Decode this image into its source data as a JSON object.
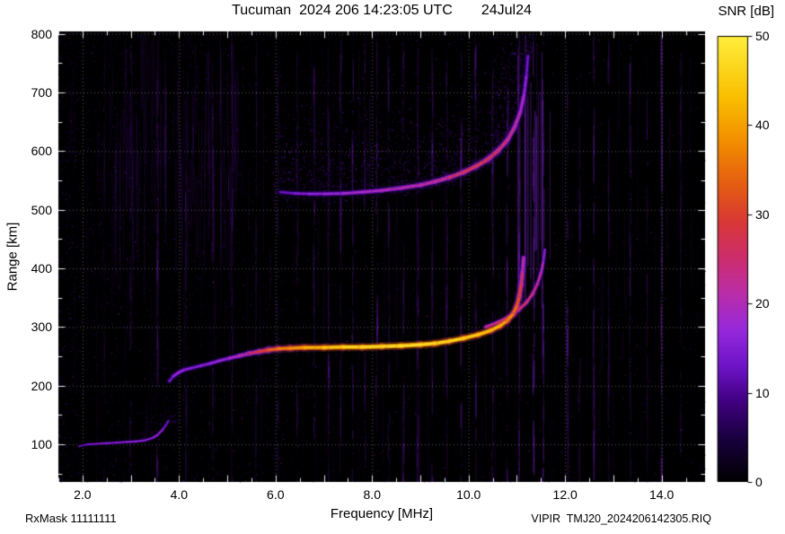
{
  "title": {
    "station_line": "Tucuman  2024 206 14:23:05 UTC",
    "date": "24Jul24"
  },
  "colorbar": {
    "label": "SNR [dB]",
    "tick_labels": [
      "0",
      "10",
      "20",
      "30",
      "40",
      "50"
    ],
    "min": 0,
    "max": 50
  },
  "axes": {
    "x_label": "Frequency [MHz]",
    "y_label": "Range [km]",
    "x_ticks": [
      2.0,
      4.0,
      6.0,
      8.0,
      10.0,
      12.0,
      14.0
    ],
    "x_tick_labels": [
      "2.0",
      "4.0",
      "6.0",
      "8.0",
      "10.0",
      "12.0",
      "14.0"
    ],
    "y_ticks": [
      100,
      200,
      300,
      400,
      500,
      600,
      700,
      800
    ],
    "y_tick_labels": [
      "100",
      "200",
      "300",
      "400",
      "500",
      "600",
      "700",
      "800"
    ],
    "x_range": [
      1.5,
      14.9
    ],
    "y_range": [
      36,
      804
    ]
  },
  "footer": {
    "rxmask": "RxMask 11111111",
    "file_info": "VIPIR  TMJ20_2024206142305.RIQ"
  },
  "chart_data": {
    "type": "heatmap",
    "title": "Tucuman 2024 206 14:23:05 UTC 24Jul24",
    "xlabel": "Frequency [MHz]",
    "ylabel": "Range [km]",
    "zlabel": "SNR [dB]",
    "xlim": [
      1.5,
      14.9
    ],
    "ylim": [
      36,
      804
    ],
    "zlim": [
      0,
      50
    ],
    "grid": true,
    "legend": "none",
    "colormap_stops": [
      [
        0.0,
        [
          0,
          0,
          0
        ]
      ],
      [
        0.1,
        [
          26,
          0,
          64
        ]
      ],
      [
        0.18,
        [
          64,
          0,
          128
        ]
      ],
      [
        0.26,
        [
          110,
          20,
          200
        ]
      ],
      [
        0.34,
        [
          150,
          40,
          220
        ]
      ],
      [
        0.42,
        [
          185,
          45,
          170
        ]
      ],
      [
        0.5,
        [
          205,
          45,
          110
        ]
      ],
      [
        0.58,
        [
          215,
          55,
          55
        ]
      ],
      [
        0.66,
        [
          228,
          90,
          20
        ]
      ],
      [
        0.76,
        [
          242,
          140,
          0
        ]
      ],
      [
        0.86,
        [
          250,
          190,
          0
        ]
      ],
      [
        1.0,
        [
          255,
          238,
          60
        ]
      ]
    ],
    "traces": [
      {
        "name": "E-layer-trace",
        "points_format": "[frequency_MHz, range_km, snr_dB]",
        "points": [
          [
            1.93,
            97,
            7
          ],
          [
            2.1,
            100,
            10
          ],
          [
            2.3,
            101,
            11
          ],
          [
            2.5,
            102,
            12
          ],
          [
            2.7,
            103,
            12
          ],
          [
            2.9,
            104,
            13
          ],
          [
            3.1,
            105,
            13
          ],
          [
            3.3,
            107,
            12
          ],
          [
            3.45,
            111,
            13
          ],
          [
            3.55,
            116,
            14
          ],
          [
            3.65,
            124,
            13
          ],
          [
            3.72,
            132,
            11
          ],
          [
            3.78,
            140,
            9
          ]
        ]
      },
      {
        "name": "F-trace-O-mode",
        "points_format": "[frequency_MHz, range_km, snr_dB]",
        "points": [
          [
            3.8,
            208,
            8
          ],
          [
            3.88,
            216,
            11
          ],
          [
            3.98,
            222,
            13
          ],
          [
            4.1,
            227,
            12
          ],
          [
            4.25,
            230,
            11
          ],
          [
            4.45,
            234,
            11
          ],
          [
            4.65,
            238,
            12
          ],
          [
            4.85,
            243,
            13
          ],
          [
            5.05,
            247,
            14
          ],
          [
            5.25,
            251,
            16
          ],
          [
            5.45,
            255,
            19
          ],
          [
            5.65,
            258,
            23
          ],
          [
            5.85,
            261,
            28
          ],
          [
            6.05,
            263,
            32
          ],
          [
            6.3,
            264,
            35
          ],
          [
            6.6,
            265,
            37
          ],
          [
            7.0,
            265,
            40
          ],
          [
            7.4,
            266,
            42
          ],
          [
            7.8,
            266,
            43
          ],
          [
            8.2,
            267,
            43
          ],
          [
            8.6,
            268,
            44
          ],
          [
            9.0,
            270,
            44
          ],
          [
            9.3,
            272,
            43
          ],
          [
            9.6,
            276,
            43
          ],
          [
            9.9,
            281,
            42
          ],
          [
            10.2,
            287,
            41
          ],
          [
            10.45,
            294,
            40
          ],
          [
            10.65,
            302,
            38
          ],
          [
            10.8,
            311,
            36
          ],
          [
            10.92,
            322,
            33
          ],
          [
            11.0,
            336,
            30
          ],
          [
            11.05,
            352,
            27
          ],
          [
            11.09,
            372,
            24
          ],
          [
            11.12,
            394,
            20
          ],
          [
            11.14,
            418,
            15
          ]
        ]
      },
      {
        "name": "F-trace-X-mode",
        "points_format": "[frequency_MHz, range_km, snr_dB]",
        "points": [
          [
            10.35,
            300,
            19
          ],
          [
            10.6,
            308,
            21
          ],
          [
            10.85,
            318,
            23
          ],
          [
            11.05,
            330,
            24
          ],
          [
            11.2,
            342,
            23
          ],
          [
            11.33,
            357,
            22
          ],
          [
            11.43,
            374,
            20
          ],
          [
            11.5,
            392,
            18
          ],
          [
            11.55,
            412,
            15
          ],
          [
            11.58,
            432,
            11
          ]
        ]
      },
      {
        "name": "second-hop-F-trace",
        "points_format": "[frequency_MHz, range_km, snr_dB]",
        "points": [
          [
            6.1,
            530,
            8
          ],
          [
            6.4,
            528,
            10
          ],
          [
            6.7,
            527,
            12
          ],
          [
            7.0,
            527,
            13
          ],
          [
            7.4,
            528,
            14
          ],
          [
            7.8,
            530,
            15
          ],
          [
            8.2,
            533,
            16
          ],
          [
            8.6,
            537,
            17
          ],
          [
            9.0,
            542,
            18
          ],
          [
            9.3,
            548,
            19
          ],
          [
            9.6,
            555,
            21
          ],
          [
            9.9,
            564,
            23
          ],
          [
            10.15,
            574,
            24
          ],
          [
            10.4,
            586,
            24
          ],
          [
            10.6,
            600,
            23
          ],
          [
            10.8,
            618,
            21
          ],
          [
            10.95,
            640,
            19
          ],
          [
            11.07,
            666,
            17
          ],
          [
            11.15,
            696,
            14
          ],
          [
            11.2,
            730,
            11
          ],
          [
            11.23,
            762,
            8
          ]
        ]
      }
    ],
    "rfi_lines": [
      [
        2.45,
        0.12
      ],
      [
        3.0,
        0.2
      ],
      [
        3.55,
        0.28
      ],
      [
        4.15,
        0.15
      ],
      [
        4.7,
        0.2
      ],
      [
        5.1,
        0.22
      ],
      [
        5.6,
        0.18
      ],
      [
        6.05,
        0.22
      ],
      [
        6.45,
        0.2
      ],
      [
        6.8,
        0.28
      ],
      [
        7.1,
        0.3
      ],
      [
        7.35,
        0.22
      ],
      [
        7.6,
        0.3
      ],
      [
        7.85,
        0.25
      ],
      [
        8.1,
        0.3
      ],
      [
        8.35,
        0.28
      ],
      [
        8.65,
        0.25
      ],
      [
        8.95,
        0.3
      ],
      [
        9.25,
        0.28
      ],
      [
        9.55,
        0.25
      ],
      [
        9.85,
        0.3
      ],
      [
        10.15,
        0.28
      ],
      [
        10.5,
        0.25
      ],
      [
        10.8,
        0.3
      ],
      [
        11.05,
        0.35
      ],
      [
        11.35,
        0.55
      ],
      [
        11.55,
        0.4
      ],
      [
        12.05,
        0.3
      ],
      [
        12.3,
        0.2
      ],
      [
        12.6,
        0.35
      ],
      [
        12.9,
        0.2
      ],
      [
        13.35,
        0.25
      ],
      [
        13.7,
        0.18
      ],
      [
        14.0,
        0.5
      ],
      [
        14.4,
        0.22
      ]
    ],
    "noise": {
      "background_speckle": true,
      "left_band_streaks_MHz": [
        2.0,
        5.6
      ],
      "spread_above_second_hop": true,
      "cusp_vertical_streaks_MHz": [
        10.95,
        11.7
      ]
    },
    "background_color": "#000000"
  }
}
